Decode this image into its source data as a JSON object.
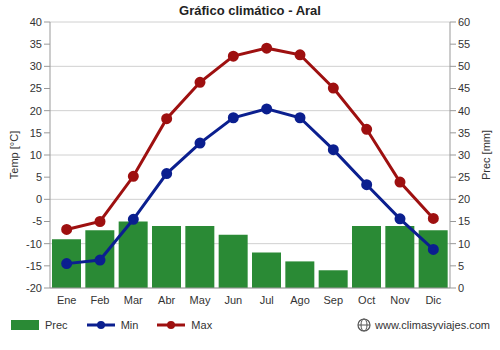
{
  "chart_data": {
    "type": "bar",
    "title": "Gráfico climático - Aral",
    "y_label": "Temp [°C]",
    "y2_label": "Prec [mm]",
    "categories": [
      "Ene",
      "Feb",
      "Mar",
      "Abr",
      "May",
      "Jun",
      "Jul",
      "Ago",
      "Sep",
      "Oct",
      "Nov",
      "Dic"
    ],
    "ylim": [
      -20,
      40
    ],
    "yticks": [
      -20,
      -15,
      -10,
      -5,
      0,
      5,
      10,
      15,
      20,
      25,
      30,
      35,
      40
    ],
    "y2lim": [
      0,
      60
    ],
    "y2ticks": [
      0,
      5,
      10,
      15,
      20,
      25,
      30,
      35,
      40,
      45,
      50,
      55,
      60
    ],
    "grid": true,
    "legend": "bottom",
    "annotation": "www.climasyviajes.com",
    "series": [
      {
        "name": "Prec",
        "type": "bar",
        "axis": "y2",
        "color": "#2a8a35",
        "values": [
          11,
          13,
          15,
          14,
          14,
          12,
          8,
          6,
          4,
          14,
          14,
          13
        ]
      },
      {
        "name": "Min",
        "type": "line",
        "color": "#0b1f8f",
        "marker": "circle",
        "values": [
          -14.5,
          -13.7,
          -4.5,
          5.8,
          12.7,
          18.4,
          20.4,
          18.4,
          11.2,
          3.3,
          -4.4,
          -11.3
        ]
      },
      {
        "name": "Max",
        "type": "line",
        "color": "#9e1010",
        "marker": "circle",
        "values": [
          -6.8,
          -5,
          5.2,
          18.2,
          26.4,
          32.3,
          34.1,
          32.6,
          25.1,
          15.8,
          3.9,
          -4.3
        ]
      }
    ]
  }
}
